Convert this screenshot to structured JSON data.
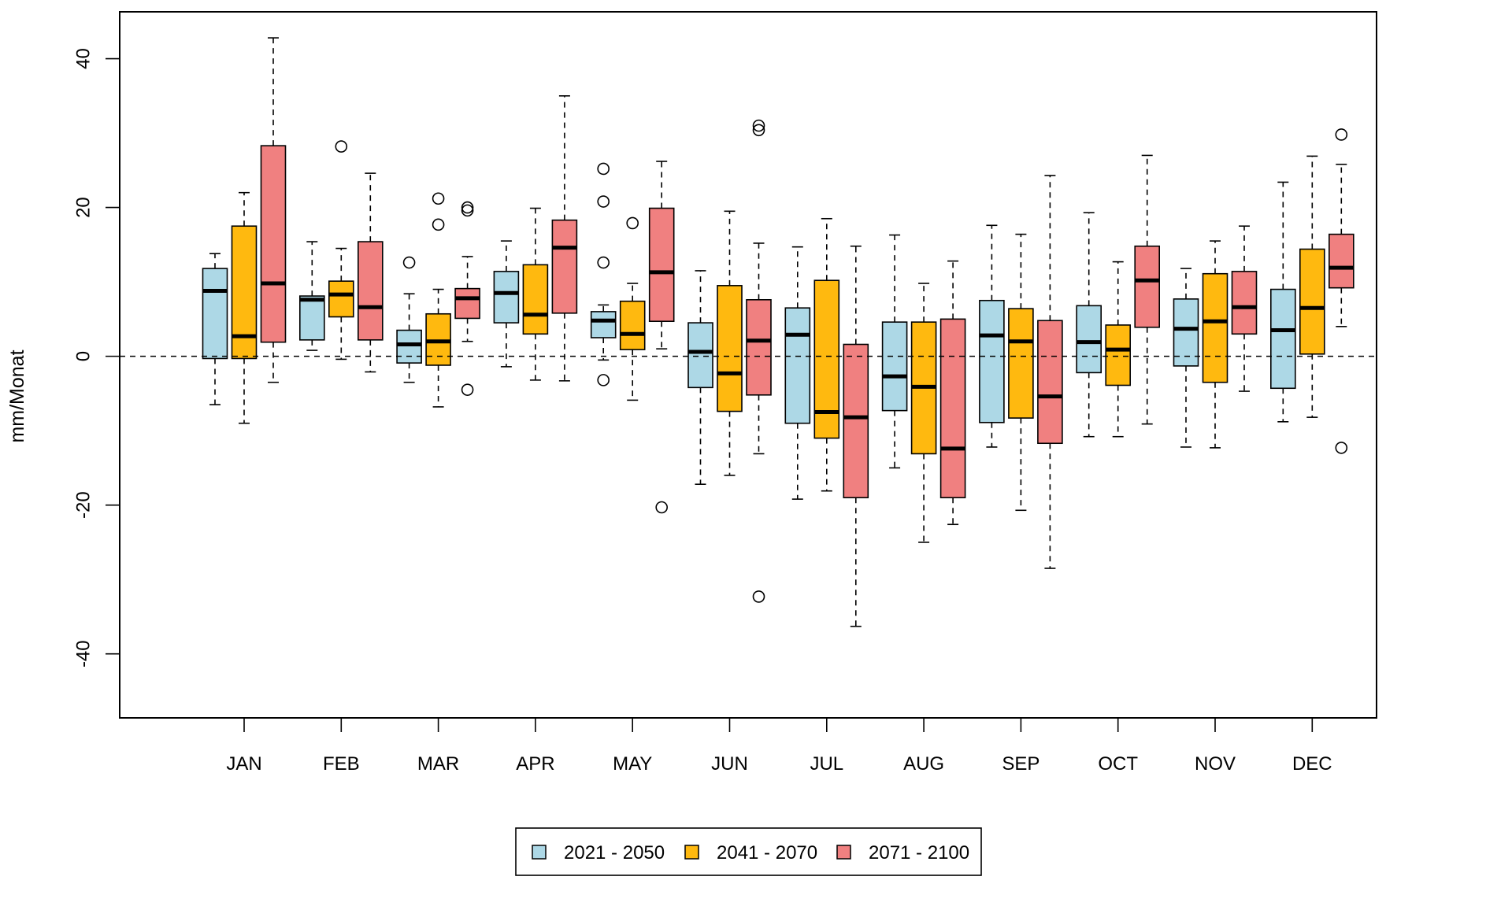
{
  "chart_data": {
    "type": "boxplot",
    "title": "",
    "xlabel": "",
    "ylabel": "mm/Monat",
    "ylim": [
      -48.6,
      46.3
    ],
    "yticks": [
      -40,
      -20,
      0,
      20,
      40
    ],
    "ytick_labels": [
      "-40",
      "-20",
      "0",
      "20",
      "40"
    ],
    "reference_line": 0,
    "grid": false,
    "legend_position": "bottom-center",
    "categories": [
      "JAN",
      "FEB",
      "MAR",
      "APR",
      "MAY",
      "JUN",
      "JUL",
      "AUG",
      "SEP",
      "OCT",
      "NOV",
      "DEC"
    ],
    "series": [
      {
        "name": "2021 - 2050",
        "color": "#add8e6",
        "boxes": [
          {
            "min": -6.5,
            "q1": -0.3,
            "median": 8.8,
            "q3": 11.8,
            "max": 13.8,
            "outliers": []
          },
          {
            "min": 0.8,
            "q1": 2.2,
            "median": 7.6,
            "q3": 8.1,
            "max": 15.4,
            "outliers": []
          },
          {
            "min": -3.5,
            "q1": -0.9,
            "median": 1.6,
            "q3": 3.5,
            "max": 8.4,
            "outliers": [
              12.6
            ]
          },
          {
            "min": -1.4,
            "q1": 4.5,
            "median": 8.5,
            "q3": 11.4,
            "max": 15.5,
            "outliers": []
          },
          {
            "min": -0.5,
            "q1": 2.5,
            "median": 4.8,
            "q3": 6.0,
            "max": 6.9,
            "outliers": [
              25.2,
              20.8,
              12.6,
              -3.2
            ]
          },
          {
            "min": -17.2,
            "q1": -4.2,
            "median": 0.6,
            "q3": 4.5,
            "max": 11.5,
            "outliers": []
          },
          {
            "min": -19.2,
            "q1": -9.0,
            "median": 2.9,
            "q3": 6.5,
            "max": 14.7,
            "outliers": []
          },
          {
            "min": -15.0,
            "q1": -7.3,
            "median": -2.7,
            "q3": 4.6,
            "max": 16.3,
            "outliers": []
          },
          {
            "min": -12.2,
            "q1": -8.9,
            "median": 2.8,
            "q3": 7.5,
            "max": 17.6,
            "outliers": []
          },
          {
            "min": -10.8,
            "q1": -2.2,
            "median": 1.9,
            "q3": 6.8,
            "max": 19.3,
            "outliers": []
          },
          {
            "min": -12.2,
            "q1": -1.3,
            "median": 3.7,
            "q3": 7.7,
            "max": 11.8,
            "outliers": []
          },
          {
            "min": -8.8,
            "q1": -4.3,
            "median": 3.5,
            "q3": 9.0,
            "max": 23.4,
            "outliers": []
          }
        ]
      },
      {
        "name": "2041 - 2070",
        "color": "#ffb90f",
        "boxes": [
          {
            "min": -9.0,
            "q1": -0.3,
            "median": 2.7,
            "q3": 17.5,
            "max": 22.0,
            "outliers": []
          },
          {
            "min": -0.4,
            "q1": 5.3,
            "median": 8.3,
            "q3": 10.1,
            "max": 14.5,
            "outliers": [
              28.2
            ]
          },
          {
            "min": -6.8,
            "q1": -1.2,
            "median": 2.0,
            "q3": 5.7,
            "max": 9.0,
            "outliers": [
              17.7,
              21.2
            ]
          },
          {
            "min": -3.2,
            "q1": 3.0,
            "median": 5.6,
            "q3": 12.3,
            "max": 19.9,
            "outliers": []
          },
          {
            "min": -5.9,
            "q1": 0.9,
            "median": 3.0,
            "q3": 7.4,
            "max": 9.8,
            "outliers": [
              17.9
            ]
          },
          {
            "min": -16.0,
            "q1": -7.4,
            "median": -2.3,
            "q3": 9.5,
            "max": 19.5,
            "outliers": []
          },
          {
            "min": -18.1,
            "q1": -11.0,
            "median": -7.5,
            "q3": 10.2,
            "max": 18.5,
            "outliers": []
          },
          {
            "min": -25.0,
            "q1": -13.1,
            "median": -4.1,
            "q3": 4.6,
            "max": 9.8,
            "outliers": []
          },
          {
            "min": -20.7,
            "q1": -8.3,
            "median": 2.0,
            "q3": 6.4,
            "max": 16.4,
            "outliers": []
          },
          {
            "min": -10.8,
            "q1": -3.9,
            "median": 0.9,
            "q3": 4.2,
            "max": 12.7,
            "outliers": []
          },
          {
            "min": -12.3,
            "q1": -3.5,
            "median": 4.7,
            "q3": 11.1,
            "max": 15.5,
            "outliers": []
          },
          {
            "min": -8.2,
            "q1": 0.3,
            "median": 6.5,
            "q3": 14.4,
            "max": 26.9,
            "outliers": []
          }
        ]
      },
      {
        "name": "2071 - 2100",
        "color": "#f08080",
        "boxes": [
          {
            "min": -3.5,
            "q1": 1.9,
            "median": 9.8,
            "q3": 28.3,
            "max": 42.8,
            "outliers": []
          },
          {
            "min": -2.1,
            "q1": 2.2,
            "median": 6.6,
            "q3": 15.4,
            "max": 24.6,
            "outliers": []
          },
          {
            "min": 2.0,
            "q1": 5.1,
            "median": 7.8,
            "q3": 9.1,
            "max": 13.4,
            "outliers": [
              20.0,
              19.6,
              -4.5
            ]
          },
          {
            "min": -3.3,
            "q1": 5.8,
            "median": 14.6,
            "q3": 18.3,
            "max": 35.0,
            "outliers": []
          },
          {
            "min": 1.0,
            "q1": 4.7,
            "median": 11.3,
            "q3": 19.9,
            "max": 26.2,
            "outliers": [
              -20.3
            ]
          },
          {
            "min": -13.1,
            "q1": -5.2,
            "median": 2.1,
            "q3": 7.6,
            "max": 15.2,
            "outliers": [
              31.0,
              30.4,
              -32.3
            ]
          },
          {
            "min": -36.3,
            "q1": -19.0,
            "median": -8.2,
            "q3": 1.6,
            "max": 14.8,
            "outliers": []
          },
          {
            "min": -22.6,
            "q1": -19.0,
            "median": -12.4,
            "q3": 5.0,
            "max": 12.8,
            "outliers": []
          },
          {
            "min": -28.5,
            "q1": -11.7,
            "median": -5.4,
            "q3": 4.8,
            "max": 24.3,
            "outliers": []
          },
          {
            "min": -9.1,
            "q1": 3.9,
            "median": 10.2,
            "q3": 14.8,
            "max": 27.0,
            "outliers": []
          },
          {
            "min": -4.7,
            "q1": 3.0,
            "median": 6.6,
            "q3": 11.4,
            "max": 17.5,
            "outliers": []
          },
          {
            "min": 4.0,
            "q1": 9.2,
            "median": 11.9,
            "q3": 16.4,
            "max": 25.8,
            "outliers": [
              29.8,
              -12.3
            ]
          }
        ]
      }
    ]
  }
}
